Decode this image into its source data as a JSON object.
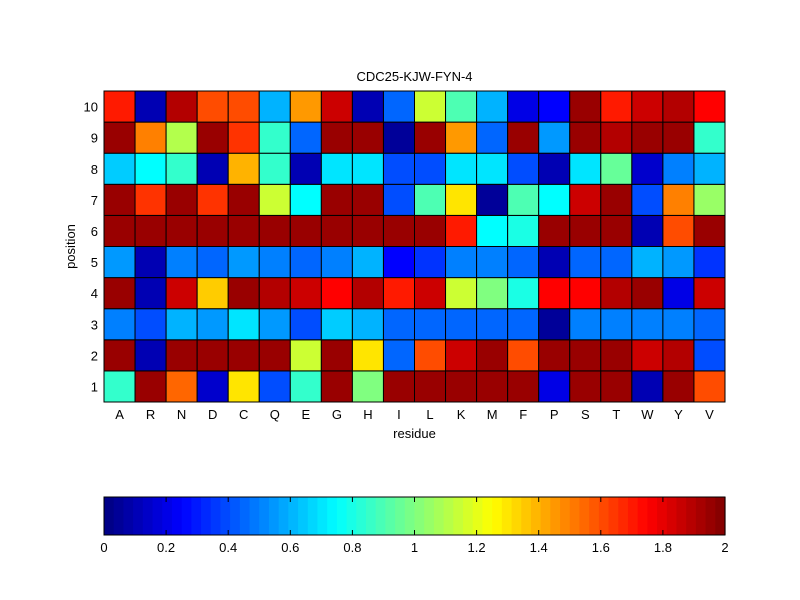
{
  "chart_data": {
    "type": "heatmap",
    "title": "CDC25-KJW-FYN-4",
    "xlabel": "residue",
    "ylabel": "position",
    "x_categories": [
      "A",
      "R",
      "N",
      "D",
      "C",
      "Q",
      "E",
      "G",
      "H",
      "I",
      "L",
      "K",
      "M",
      "F",
      "P",
      "S",
      "T",
      "W",
      "Y",
      "V"
    ],
    "y_categories": [
      "1",
      "2",
      "3",
      "4",
      "5",
      "6",
      "7",
      "8",
      "9",
      "10"
    ],
    "clim": [
      0,
      2
    ],
    "colormap": "jet",
    "colorbar_ticks": [
      "0",
      "0.2",
      "0.4",
      "0.6",
      "0.8",
      "1",
      "1.2",
      "1.4",
      "1.6",
      "1.8",
      "2"
    ],
    "values": [
      [
        0.85,
        1.95,
        1.55,
        0.15,
        1.3,
        0.4,
        0.85,
        1.95,
        1.0,
        1.95,
        1.95,
        1.95,
        1.95,
        1.95,
        0.2,
        1.95,
        1.95,
        0.1,
        1.95,
        1.6
      ],
      [
        1.95,
        0.1,
        1.95,
        1.95,
        1.95,
        1.95,
        1.15,
        1.95,
        1.3,
        0.45,
        1.6,
        1.85,
        1.95,
        1.6,
        1.95,
        1.95,
        1.95,
        1.85,
        1.9,
        0.4
      ],
      [
        0.5,
        0.4,
        0.6,
        0.55,
        0.7,
        0.55,
        0.4,
        0.65,
        0.6,
        0.45,
        0.45,
        0.45,
        0.45,
        0.45,
        0.05,
        0.5,
        0.5,
        0.5,
        0.5,
        0.45
      ],
      [
        1.95,
        0.1,
        1.85,
        1.35,
        1.95,
        1.9,
        1.85,
        1.75,
        1.9,
        1.7,
        1.85,
        1.15,
        1.0,
        0.8,
        1.75,
        1.75,
        1.9,
        1.95,
        0.2,
        1.85
      ],
      [
        0.55,
        0.1,
        0.5,
        0.45,
        0.55,
        0.5,
        0.45,
        0.5,
        0.6,
        0.25,
        0.35,
        0.5,
        0.5,
        0.45,
        0.1,
        0.45,
        0.45,
        0.6,
        0.55,
        0.35
      ],
      [
        1.95,
        1.95,
        1.95,
        1.95,
        1.95,
        1.95,
        1.95,
        1.95,
        1.95,
        1.95,
        1.95,
        1.7,
        0.75,
        0.8,
        1.95,
        1.95,
        1.95,
        0.1,
        1.6,
        1.95
      ],
      [
        1.95,
        1.65,
        1.95,
        1.65,
        1.95,
        1.15,
        0.75,
        1.95,
        1.95,
        0.4,
        0.9,
        1.3,
        0.05,
        0.9,
        0.75,
        1.85,
        1.95,
        0.4,
        1.5,
        1.05
      ],
      [
        0.65,
        0.75,
        0.85,
        0.1,
        1.4,
        0.85,
        0.1,
        0.7,
        0.7,
        0.4,
        0.4,
        0.7,
        0.7,
        0.4,
        0.1,
        0.7,
        0.95,
        0.15,
        0.5,
        0.6
      ],
      [
        1.95,
        1.5,
        1.1,
        1.95,
        1.65,
        0.85,
        0.45,
        1.95,
        1.95,
        0.05,
        1.95,
        1.45,
        0.45,
        1.95,
        0.55,
        1.95,
        1.9,
        1.95,
        1.95,
        0.85
      ],
      [
        1.7,
        0.1,
        1.9,
        1.6,
        1.6,
        0.6,
        1.45,
        1.85,
        0.1,
        0.45,
        1.15,
        0.9,
        0.6,
        0.2,
        0.25,
        1.95,
        1.7,
        1.85,
        1.9,
        1.75
      ]
    ]
  }
}
